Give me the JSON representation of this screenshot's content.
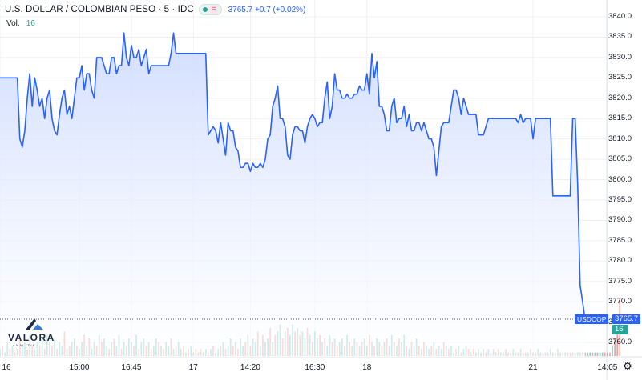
{
  "header": {
    "title": "U.S. DOLLAR / COLOMBIAN PESO · 5 · IDC",
    "eq_symbol": "=",
    "quote": "3765.7 +0.7 (+0.02%)",
    "vol_label": "Vol.",
    "vol_value": "16"
  },
  "tags": {
    "symbol": "USDCOP",
    "last_price": "3765.7",
    "last_volume": "16"
  },
  "logo": {
    "name": "VALORA",
    "sub": "ANALITIK"
  },
  "colors": {
    "line": "#2962ff",
    "area_top": "#cfdcff",
    "area_bottom": "#ffffff",
    "vol_up": "#26a69a",
    "vol_down": "#ef5350",
    "grid": "#eef0f3",
    "price_tag": "#2962ff",
    "volume_tag": "#26a69a"
  },
  "chart_data": {
    "type": "area",
    "title": "U.S. DOLLAR / COLOMBIAN PESO · 5 · IDC",
    "ylim": [
      3756,
      3843
    ],
    "y_ticks": [
      3760.0,
      3765.0,
      3770.0,
      3775.0,
      3780.0,
      3785.0,
      3790.0,
      3795.0,
      3800.0,
      3805.0,
      3810.0,
      3815.0,
      3820.0,
      3825.0,
      3830.0,
      3835.0,
      3840.0
    ],
    "y_tick_labels": [
      "3760.0",
      "3765.0",
      "3770.0",
      "3775.0",
      "3780.0",
      "3785.0",
      "3790.0",
      "3795.0",
      "3800.0",
      "3805.0",
      "3810.0",
      "3815.0",
      "3820.0",
      "3825.0",
      "3830.0",
      "3835.0",
      "3840.0"
    ],
    "x_ticks": [
      {
        "label": "16",
        "i": 0
      },
      {
        "label": "15:00",
        "i": 32
      },
      {
        "label": "16:45",
        "i": 53
      },
      {
        "label": "17",
        "i": 78
      },
      {
        "label": "14:20",
        "i": 101
      },
      {
        "label": "16:30",
        "i": 127
      },
      {
        "label": "18",
        "i": 148
      },
      {
        "label": "21",
        "i": 215
      },
      {
        "label": "14:05",
        "i": 245
      }
    ],
    "last_price": 3765.7,
    "grid": true,
    "series": [
      {
        "values": [
          3825.0,
          3825.0,
          3825.0,
          3825.0,
          3825.0,
          3825.0,
          3825.0,
          3825.0,
          3810.0,
          3808.0,
          3812.0,
          3820.0,
          3826.0,
          3818.0,
          3825.0,
          3822.0,
          3818.0,
          3820.0,
          3815.0,
          3820.0,
          3822.0,
          3815.0,
          3812.0,
          3811.0,
          3816.0,
          3820.0,
          3822.0,
          3816.0,
          3818.0,
          3815.0,
          3820.0,
          3825.0,
          3825.0,
          3828.0,
          3822.0,
          3826.0,
          3826.0,
          3822.0,
          3820.0,
          3830.0,
          3830.0,
          3830.0,
          3828.0,
          3826.0,
          3826.0,
          3830.0,
          3830.0,
          3826.0,
          3828.0,
          3828.0,
          3836.0,
          3830.0,
          3828.0,
          3833.0,
          3830.0,
          3830.0,
          3832.0,
          3828.0,
          3830.0,
          3832.0,
          3826.0,
          3828.0,
          3828.0,
          3828.0,
          3828.0,
          3828.0,
          3828.0,
          3828.0,
          3828.0,
          3831.0,
          3836.0,
          3831.0,
          3831.0,
          3831.0,
          3831.0,
          3831.0,
          3831.0,
          3831.0,
          3831.0,
          3831.0,
          3831.0,
          3831.0,
          3831.0,
          3831.0,
          3811.0,
          3812.0,
          3813.0,
          3812.0,
          3809.0,
          3814.0,
          3810.0,
          3806.0,
          3814.0,
          3812.0,
          3812.0,
          3808.0,
          3807.0,
          3803.0,
          3803.0,
          3804.0,
          3804.0,
          3802.0,
          3804.0,
          3803.0,
          3803.0,
          3804.0,
          3803.0,
          3805.0,
          3810.0,
          3811.0,
          3818.0,
          3820.0,
          3823.0,
          3815.0,
          3815.0,
          3813.0,
          3806.0,
          3805.0,
          3811.0,
          3813.0,
          3813.0,
          3812.0,
          3812.0,
          3809.0,
          3813.0,
          3815.0,
          3816.0,
          3815.0,
          3813.0,
          3814.0,
          3814.0,
          3820.0,
          3824.0,
          3815.0,
          3818.0,
          3826.0,
          3822.0,
          3822.0,
          3820.0,
          3820.0,
          3821.0,
          3820.0,
          3820.0,
          3821.0,
          3821.0,
          3823.0,
          3822.0,
          3822.0,
          3826.0,
          3821.0,
          3831.0,
          3825.0,
          3829.0,
          3818.0,
          3818.0,
          3816.0,
          3812.0,
          3812.0,
          3818.0,
          3820.0,
          3814.0,
          3815.0,
          3815.0,
          3818.0,
          3813.0,
          3816.0,
          3812.0,
          3812.0,
          3814.0,
          3814.0,
          3812.0,
          3814.0,
          3812.0,
          3810.0,
          3810.0,
          3808.0,
          3801.0,
          3807.0,
          3813.0,
          3814.0,
          3814.0,
          3814.0,
          3818.0,
          3822.0,
          3822.0,
          3820.0,
          3816.0,
          3820.0,
          3818.0,
          3816.0,
          3816.0,
          3816.0,
          3816.0,
          3811.0,
          3811.0,
          3811.0,
          3813.0,
          3815.0,
          3815.0,
          3815.0,
          3815.0,
          3815.0,
          3815.0,
          3815.0,
          3815.0,
          3815.0,
          3815.0,
          3815.0,
          3815.0,
          3814.0,
          3816.0,
          3814.0,
          3815.0,
          3815.0,
          3815.0,
          3810.0,
          3815.0,
          3815.0,
          3815.0,
          3815.0,
          3815.0,
          3815.0,
          3815.0,
          3796.0,
          3796.0,
          3796.0,
          3796.0,
          3796.0,
          3796.0,
          3796.0,
          3796.0,
          3815.0,
          3815.0,
          3799.0,
          3774.0,
          3770.0,
          3765.7
        ]
      }
    ],
    "volume": [
      2,
      3,
      1,
      4,
      2,
      3,
      1,
      2,
      5,
      3,
      4,
      2,
      6,
      3,
      2,
      4,
      3,
      5,
      2,
      6,
      4,
      3,
      5,
      2,
      4,
      3,
      7,
      2,
      3,
      4,
      5,
      3,
      2,
      4,
      6,
      3,
      5,
      2,
      4,
      3,
      6,
      4,
      5,
      3,
      2,
      4,
      5,
      3,
      6,
      2,
      4,
      3,
      5,
      4,
      3,
      6,
      2,
      4,
      5,
      3,
      4,
      2,
      3,
      5,
      4,
      3,
      2,
      4,
      3,
      5,
      2,
      3,
      4,
      2,
      3,
      1,
      2,
      3,
      1,
      2,
      1,
      2,
      1,
      2,
      1,
      2,
      3,
      1,
      2,
      3,
      4,
      2,
      3,
      5,
      3,
      4,
      2,
      5,
      3,
      4,
      6,
      3,
      5,
      4,
      7,
      3,
      6,
      4,
      5,
      8,
      4,
      6,
      7,
      9,
      5,
      7,
      8,
      6,
      9,
      7,
      8,
      6,
      7,
      5,
      8,
      6,
      4,
      7,
      5,
      6,
      4,
      5,
      3,
      6,
      4,
      5,
      3,
      4,
      5,
      3,
      6,
      4,
      3,
      5,
      4,
      3,
      4,
      5,
      3,
      6,
      4,
      3,
      5,
      4,
      3,
      4,
      5,
      3,
      6,
      4,
      3,
      5,
      4,
      6,
      3,
      2,
      4,
      3,
      5,
      3,
      2,
      4,
      3,
      2,
      3,
      4,
      2,
      3,
      2,
      4,
      3,
      2,
      3,
      1,
      2,
      3,
      1,
      2,
      3,
      2,
      1,
      2,
      1,
      2,
      1,
      2,
      1,
      2,
      1,
      2,
      1,
      2,
      1,
      1,
      2,
      1,
      1,
      2,
      1,
      1,
      2,
      1,
      1,
      1,
      2,
      1,
      1,
      2,
      1,
      1,
      1,
      1,
      2,
      1,
      1,
      2,
      1,
      1,
      1,
      1,
      1,
      1,
      1,
      1,
      1,
      1,
      1,
      1,
      1,
      1,
      1,
      1,
      1,
      1,
      1,
      1,
      1,
      3,
      5,
      8,
      16
    ],
    "volume_up": [
      1,
      0,
      1,
      1,
      0,
      1,
      0,
      1,
      0,
      1,
      1,
      0,
      1,
      0,
      1,
      1,
      0,
      1,
      0,
      1,
      1,
      0,
      1,
      0,
      1,
      1,
      0,
      1,
      0,
      1,
      1,
      0,
      1,
      1,
      0,
      1,
      0,
      1,
      1,
      0,
      1,
      0,
      1,
      1,
      0,
      1,
      0,
      1,
      1,
      0,
      1,
      0,
      1,
      1,
      0,
      1,
      0,
      1,
      1,
      0,
      1,
      0,
      1,
      1,
      0,
      1,
      0,
      1,
      1,
      0,
      1,
      0,
      1,
      1,
      0,
      1,
      0,
      1,
      1,
      0,
      1,
      0,
      1,
      1,
      0,
      1,
      0,
      1,
      1,
      0,
      1,
      0,
      1,
      1,
      0,
      1,
      0,
      1,
      1,
      0,
      1,
      0,
      1,
      1,
      0,
      1,
      0,
      1,
      1,
      0,
      1,
      0,
      1,
      1,
      0,
      1,
      0,
      1,
      1,
      0,
      1,
      0,
      1,
      1,
      0,
      1,
      0,
      1,
      1,
      0,
      1,
      0,
      1,
      1,
      0,
      1,
      0,
      1,
      1,
      0,
      1,
      0,
      1,
      1,
      0,
      1,
      0,
      1,
      1,
      0,
      1,
      0,
      1,
      1,
      0,
      1,
      0,
      1,
      1,
      0,
      1,
      0,
      1,
      1,
      0,
      1,
      0,
      1,
      1,
      0,
      1,
      0,
      1,
      1,
      0,
      1,
      0,
      1,
      1,
      0,
      1,
      0,
      1,
      1,
      0,
      1,
      0,
      1,
      1,
      0,
      1,
      0,
      1,
      1,
      0,
      1,
      0,
      1,
      1,
      0,
      1,
      0,
      1,
      1,
      0,
      1,
      0,
      1,
      1,
      0,
      1,
      0,
      1,
      1,
      0,
      1,
      0,
      1,
      1,
      0,
      1,
      0,
      1,
      1,
      0,
      1,
      0,
      1,
      1,
      0,
      1,
      0,
      1,
      1,
      0,
      1,
      0,
      1,
      1,
      0,
      1,
      0,
      1,
      1,
      0,
      1,
      0,
      1,
      0
    ]
  }
}
